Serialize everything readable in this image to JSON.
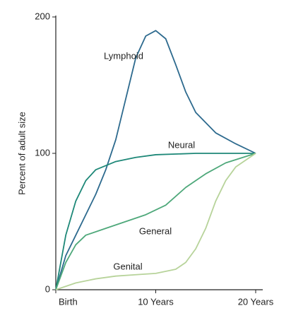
{
  "chart_data": {
    "type": "line",
    "y_label": "Percent of adult size",
    "xlim": [
      0,
      20
    ],
    "xticks": [
      {
        "value": 0,
        "label": "Birth"
      },
      {
        "value": 10,
        "label": "10 Years"
      },
      {
        "value": 20,
        "label": "20 Years"
      }
    ],
    "ylim": [
      0,
      200
    ],
    "yticks": [
      0,
      100,
      200
    ],
    "grid": false,
    "series": [
      {
        "name": "Lymphoid",
        "color": "#2d6a8e",
        "x": [
          0,
          1,
          2,
          3,
          4,
          5,
          6,
          7,
          8,
          9,
          10,
          11,
          12,
          13,
          14,
          16,
          18,
          20
        ],
        "values": [
          0,
          25,
          40,
          55,
          70,
          88,
          110,
          140,
          170,
          186,
          190,
          184,
          165,
          145,
          130,
          115,
          107,
          100
        ]
      },
      {
        "name": "Neural",
        "color": "#1e8878",
        "x": [
          0,
          1,
          2,
          3,
          4,
          6,
          8,
          10,
          14,
          18,
          20
        ],
        "values": [
          0,
          40,
          65,
          80,
          88,
          94,
          97,
          99,
          100,
          100,
          100
        ]
      },
      {
        "name": "General",
        "color": "#4ea87a",
        "x": [
          0,
          1,
          2,
          3,
          5,
          7,
          9,
          11,
          13,
          15,
          17,
          20
        ],
        "values": [
          0,
          20,
          33,
          40,
          45,
          50,
          55,
          62,
          75,
          85,
          93,
          100
        ]
      },
      {
        "name": "Genital",
        "color": "#b7d39a",
        "x": [
          0,
          2,
          4,
          6,
          8,
          10,
          12,
          13,
          14,
          15,
          16,
          17,
          18,
          20
        ],
        "values": [
          0,
          5,
          8,
          10,
          11,
          12,
          15,
          20,
          30,
          45,
          65,
          80,
          90,
          100
        ]
      }
    ]
  }
}
